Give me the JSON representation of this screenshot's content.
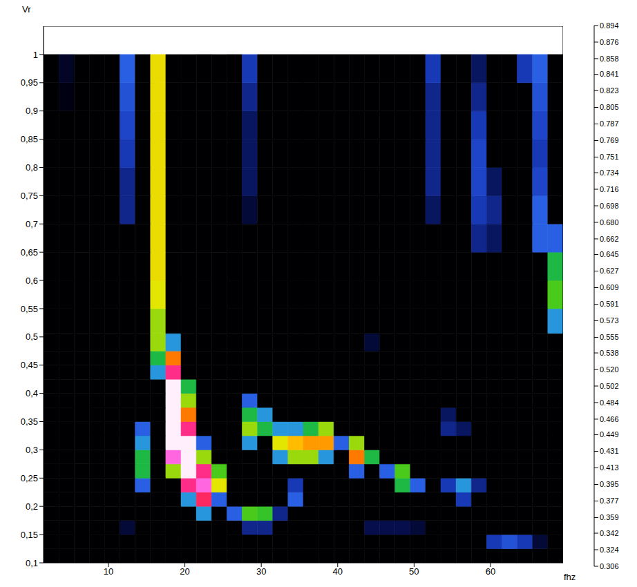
{
  "chart_data": {
    "type": "heatmap",
    "xlabel": "fhz",
    "ylabel": "Vr",
    "x": [
      2.5,
      4.5,
      6.5,
      8.5,
      10.5,
      12.5,
      14.5,
      16.5,
      18.5,
      20.5,
      22.5,
      24.5,
      26.5,
      28.5,
      30.5,
      32.5,
      34.5,
      36.5,
      38.5,
      40.5,
      42.5,
      44.5,
      46.5,
      48.5,
      50.5,
      52.5,
      54.5,
      56.5,
      58.5,
      60.5,
      62.5,
      64.5,
      66.5,
      68.5
    ],
    "y": [
      0.1125,
      0.1375,
      0.1625,
      0.1875,
      0.2125,
      0.2375,
      0.2625,
      0.2875,
      0.3125,
      0.3375,
      0.3625,
      0.3875,
      0.4125,
      0.4375,
      0.4625,
      0.4875,
      0.525,
      0.575,
      0.625,
      0.675,
      0.725,
      0.775,
      0.825,
      0.875,
      0.925,
      0.975
    ],
    "z": [
      [
        0.31,
        0.31,
        0.31,
        0.31,
        0.31,
        0.31,
        0.31,
        0.31,
        0.31,
        0.31,
        0.31,
        0.31,
        0.31,
        0.31,
        0.31,
        0.31,
        0.31,
        0.31,
        0.31,
        0.31,
        0.31,
        0.31,
        0.31,
        0.31,
        0.31,
        0.31,
        0.31,
        0.31,
        0.31,
        0.31,
        0.31,
        0.31,
        0.31,
        0.31
      ],
      [
        0.31,
        0.31,
        0.31,
        0.31,
        0.31,
        0.31,
        0.31,
        0.31,
        0.31,
        0.31,
        0.31,
        0.31,
        0.31,
        0.31,
        0.31,
        0.31,
        0.31,
        0.31,
        0.31,
        0.31,
        0.31,
        0.31,
        0.31,
        0.31,
        0.31,
        0.31,
        0.31,
        0.31,
        0.31,
        0.42,
        0.44,
        0.42,
        0.36,
        0.31
      ],
      [
        0.31,
        0.31,
        0.31,
        0.31,
        0.31,
        0.36,
        0.31,
        0.31,
        0.31,
        0.31,
        0.31,
        0.31,
        0.31,
        0.4,
        0.4,
        0.31,
        0.31,
        0.31,
        0.31,
        0.31,
        0.31,
        0.37,
        0.37,
        0.37,
        0.36,
        0.31,
        0.31,
        0.31,
        0.31,
        0.31,
        0.31,
        0.31,
        0.31,
        0.31
      ],
      [
        0.31,
        0.31,
        0.31,
        0.31,
        0.31,
        0.31,
        0.31,
        0.31,
        0.31,
        0.31,
        0.5,
        0.31,
        0.45,
        0.58,
        0.57,
        0.4,
        0.31,
        0.31,
        0.31,
        0.31,
        0.31,
        0.31,
        0.31,
        0.31,
        0.31,
        0.31,
        0.31,
        0.31,
        0.31,
        0.31,
        0.31,
        0.31,
        0.31,
        0.31
      ],
      [
        0.31,
        0.31,
        0.31,
        0.31,
        0.31,
        0.31,
        0.31,
        0.31,
        0.31,
        0.5,
        0.78,
        0.45,
        0.31,
        0.31,
        0.31,
        0.31,
        0.45,
        0.31,
        0.31,
        0.31,
        0.31,
        0.31,
        0.31,
        0.31,
        0.31,
        0.31,
        0.31,
        0.42,
        0.31,
        0.31,
        0.31,
        0.31,
        0.31,
        0.31
      ],
      [
        0.31,
        0.31,
        0.31,
        0.31,
        0.31,
        0.31,
        0.45,
        0.31,
        0.31,
        0.8,
        0.85,
        0.62,
        0.31,
        0.31,
        0.31,
        0.31,
        0.42,
        0.31,
        0.31,
        0.31,
        0.31,
        0.31,
        0.31,
        0.55,
        0.45,
        0.31,
        0.42,
        0.5,
        0.4,
        0.31,
        0.31,
        0.31,
        0.31,
        0.31
      ],
      [
        0.31,
        0.31,
        0.31,
        0.31,
        0.31,
        0.31,
        0.55,
        0.31,
        0.6,
        0.89,
        0.8,
        0.58,
        0.31,
        0.31,
        0.31,
        0.31,
        0.31,
        0.31,
        0.31,
        0.31,
        0.45,
        0.31,
        0.45,
        0.58,
        0.31,
        0.31,
        0.31,
        0.31,
        0.31,
        0.31,
        0.31,
        0.31,
        0.31,
        0.31
      ],
      [
        0.31,
        0.31,
        0.31,
        0.31,
        0.31,
        0.31,
        0.55,
        0.31,
        0.85,
        0.89,
        0.6,
        0.31,
        0.31,
        0.31,
        0.31,
        0.5,
        0.6,
        0.6,
        0.5,
        0.31,
        0.7,
        0.55,
        0.31,
        0.31,
        0.31,
        0.31,
        0.31,
        0.31,
        0.31,
        0.31,
        0.31,
        0.31,
        0.31,
        0.31
      ],
      [
        0.31,
        0.31,
        0.31,
        0.31,
        0.31,
        0.31,
        0.5,
        0.31,
        0.89,
        0.89,
        0.45,
        0.31,
        0.31,
        0.5,
        0.31,
        0.62,
        0.66,
        0.68,
        0.68,
        0.45,
        0.6,
        0.31,
        0.31,
        0.31,
        0.31,
        0.31,
        0.31,
        0.31,
        0.31,
        0.31,
        0.31,
        0.31,
        0.31,
        0.31
      ],
      [
        0.31,
        0.31,
        0.31,
        0.31,
        0.31,
        0.31,
        0.45,
        0.31,
        0.89,
        0.8,
        0.31,
        0.31,
        0.31,
        0.6,
        0.55,
        0.5,
        0.5,
        0.55,
        0.6,
        0.31,
        0.31,
        0.31,
        0.31,
        0.31,
        0.31,
        0.31,
        0.4,
        0.38,
        0.31,
        0.31,
        0.31,
        0.31,
        0.31,
        0.31
      ],
      [
        0.31,
        0.31,
        0.31,
        0.31,
        0.31,
        0.31,
        0.31,
        0.31,
        0.89,
        0.7,
        0.31,
        0.31,
        0.31,
        0.55,
        0.5,
        0.31,
        0.31,
        0.31,
        0.31,
        0.31,
        0.31,
        0.31,
        0.31,
        0.31,
        0.31,
        0.31,
        0.38,
        0.31,
        0.31,
        0.31,
        0.31,
        0.31,
        0.31,
        0.31
      ],
      [
        0.31,
        0.31,
        0.31,
        0.31,
        0.31,
        0.31,
        0.31,
        0.31,
        0.89,
        0.6,
        0.31,
        0.31,
        0.31,
        0.45,
        0.31,
        0.31,
        0.31,
        0.31,
        0.31,
        0.31,
        0.31,
        0.31,
        0.31,
        0.31,
        0.31,
        0.31,
        0.31,
        0.31,
        0.31,
        0.31,
        0.31,
        0.31,
        0.31,
        0.31
      ],
      [
        0.31,
        0.31,
        0.31,
        0.31,
        0.31,
        0.31,
        0.31,
        0.31,
        0.89,
        0.55,
        0.31,
        0.31,
        0.31,
        0.31,
        0.31,
        0.31,
        0.31,
        0.31,
        0.31,
        0.31,
        0.31,
        0.31,
        0.31,
        0.31,
        0.31,
        0.31,
        0.31,
        0.31,
        0.31,
        0.31,
        0.31,
        0.31,
        0.31,
        0.31
      ],
      [
        0.31,
        0.31,
        0.31,
        0.31,
        0.31,
        0.31,
        0.31,
        0.5,
        0.8,
        0.31,
        0.31,
        0.31,
        0.31,
        0.31,
        0.31,
        0.31,
        0.31,
        0.31,
        0.31,
        0.31,
        0.31,
        0.31,
        0.31,
        0.31,
        0.31,
        0.31,
        0.31,
        0.31,
        0.31,
        0.31,
        0.31,
        0.31,
        0.31,
        0.31
      ],
      [
        0.31,
        0.31,
        0.31,
        0.31,
        0.31,
        0.31,
        0.31,
        0.55,
        0.7,
        0.31,
        0.31,
        0.31,
        0.31,
        0.31,
        0.31,
        0.31,
        0.31,
        0.31,
        0.31,
        0.31,
        0.31,
        0.31,
        0.31,
        0.31,
        0.31,
        0.31,
        0.31,
        0.31,
        0.31,
        0.31,
        0.31,
        0.31,
        0.31,
        0.31
      ],
      [
        0.31,
        0.31,
        0.31,
        0.31,
        0.31,
        0.31,
        0.31,
        0.6,
        0.5,
        0.31,
        0.31,
        0.31,
        0.31,
        0.31,
        0.31,
        0.31,
        0.31,
        0.31,
        0.31,
        0.31,
        0.31,
        0.36,
        0.31,
        0.31,
        0.31,
        0.31,
        0.31,
        0.31,
        0.31,
        0.31,
        0.31,
        0.31,
        0.31,
        0.31
      ],
      [
        0.31,
        0.31,
        0.31,
        0.31,
        0.31,
        0.31,
        0.31,
        0.6,
        0.31,
        0.31,
        0.31,
        0.31,
        0.31,
        0.31,
        0.31,
        0.31,
        0.31,
        0.31,
        0.31,
        0.31,
        0.31,
        0.31,
        0.31,
        0.31,
        0.31,
        0.31,
        0.31,
        0.31,
        0.31,
        0.31,
        0.31,
        0.31,
        0.31,
        0.5
      ],
      [
        0.31,
        0.31,
        0.31,
        0.31,
        0.31,
        0.31,
        0.31,
        0.62,
        0.31,
        0.31,
        0.31,
        0.31,
        0.31,
        0.31,
        0.31,
        0.31,
        0.31,
        0.31,
        0.31,
        0.31,
        0.31,
        0.31,
        0.31,
        0.31,
        0.31,
        0.31,
        0.31,
        0.31,
        0.31,
        0.31,
        0.31,
        0.31,
        0.31,
        0.58
      ],
      [
        0.31,
        0.31,
        0.31,
        0.31,
        0.31,
        0.31,
        0.31,
        0.63,
        0.31,
        0.31,
        0.31,
        0.31,
        0.31,
        0.31,
        0.31,
        0.31,
        0.31,
        0.31,
        0.31,
        0.31,
        0.31,
        0.31,
        0.31,
        0.31,
        0.31,
        0.31,
        0.31,
        0.31,
        0.31,
        0.31,
        0.31,
        0.31,
        0.31,
        0.55
      ],
      [
        0.31,
        0.31,
        0.31,
        0.31,
        0.31,
        0.31,
        0.31,
        0.63,
        0.31,
        0.31,
        0.31,
        0.31,
        0.31,
        0.31,
        0.31,
        0.31,
        0.31,
        0.31,
        0.31,
        0.31,
        0.31,
        0.31,
        0.31,
        0.31,
        0.31,
        0.31,
        0.31,
        0.31,
        0.4,
        0.38,
        0.31,
        0.31,
        0.45,
        0.45
      ],
      [
        0.31,
        0.31,
        0.31,
        0.31,
        0.31,
        0.4,
        0.31,
        0.63,
        0.31,
        0.31,
        0.31,
        0.31,
        0.31,
        0.36,
        0.31,
        0.31,
        0.31,
        0.31,
        0.31,
        0.31,
        0.31,
        0.31,
        0.31,
        0.31,
        0.31,
        0.38,
        0.31,
        0.31,
        0.42,
        0.4,
        0.31,
        0.31,
        0.45,
        0.31
      ],
      [
        0.31,
        0.31,
        0.31,
        0.31,
        0.31,
        0.4,
        0.31,
        0.63,
        0.31,
        0.31,
        0.31,
        0.31,
        0.31,
        0.38,
        0.31,
        0.31,
        0.31,
        0.31,
        0.31,
        0.31,
        0.31,
        0.31,
        0.31,
        0.31,
        0.31,
        0.4,
        0.31,
        0.31,
        0.43,
        0.38,
        0.31,
        0.31,
        0.43,
        0.31
      ],
      [
        0.31,
        0.31,
        0.31,
        0.31,
        0.31,
        0.42,
        0.31,
        0.63,
        0.31,
        0.31,
        0.31,
        0.31,
        0.31,
        0.38,
        0.31,
        0.31,
        0.31,
        0.31,
        0.31,
        0.31,
        0.31,
        0.31,
        0.31,
        0.31,
        0.31,
        0.4,
        0.31,
        0.31,
        0.43,
        0.31,
        0.31,
        0.31,
        0.42,
        0.31
      ],
      [
        0.31,
        0.31,
        0.31,
        0.31,
        0.31,
        0.43,
        0.31,
        0.63,
        0.31,
        0.31,
        0.31,
        0.31,
        0.31,
        0.38,
        0.31,
        0.31,
        0.31,
        0.31,
        0.31,
        0.31,
        0.31,
        0.31,
        0.31,
        0.31,
        0.31,
        0.4,
        0.31,
        0.31,
        0.42,
        0.31,
        0.31,
        0.31,
        0.43,
        0.31
      ],
      [
        0.31,
        0.34,
        0.31,
        0.31,
        0.31,
        0.44,
        0.31,
        0.63,
        0.31,
        0.31,
        0.31,
        0.31,
        0.31,
        0.4,
        0.31,
        0.31,
        0.31,
        0.31,
        0.31,
        0.31,
        0.31,
        0.31,
        0.31,
        0.31,
        0.31,
        0.4,
        0.31,
        0.31,
        0.4,
        0.31,
        0.31,
        0.31,
        0.44,
        0.31
      ],
      [
        0.31,
        0.35,
        0.31,
        0.31,
        0.31,
        0.45,
        0.31,
        0.63,
        0.31,
        0.31,
        0.31,
        0.31,
        0.31,
        0.42,
        0.31,
        0.31,
        0.31,
        0.31,
        0.31,
        0.31,
        0.31,
        0.31,
        0.31,
        0.31,
        0.31,
        0.42,
        0.31,
        0.31,
        0.38,
        0.31,
        0.31,
        0.42,
        0.45,
        0.31
      ]
    ],
    "xlim": [
      1.5,
      69.5
    ],
    "ylim": [
      0.1,
      1.05
    ],
    "xticks": [
      10,
      20,
      30,
      40,
      50,
      60
    ],
    "yticks": [
      {
        "value": 0.1,
        "label": "0,1"
      },
      {
        "value": 0.15,
        "label": "0,15"
      },
      {
        "value": 0.2,
        "label": "0,2"
      },
      {
        "value": 0.25,
        "label": "0,25"
      },
      {
        "value": 0.3,
        "label": "0,3"
      },
      {
        "value": 0.35,
        "label": "0,35"
      },
      {
        "value": 0.4,
        "label": "0,4"
      },
      {
        "value": 0.45,
        "label": "0,45"
      },
      {
        "value": 0.5,
        "label": "0,5"
      },
      {
        "value": 0.55,
        "label": "0,55"
      },
      {
        "value": 0.6,
        "label": "0,6"
      },
      {
        "value": 0.65,
        "label": "0,65"
      },
      {
        "value": 0.7,
        "label": "0,7"
      },
      {
        "value": 0.75,
        "label": "0,75"
      },
      {
        "value": 0.8,
        "label": "0,8"
      },
      {
        "value": 0.85,
        "label": "0,85"
      },
      {
        "value": 0.9,
        "label": "0,9"
      },
      {
        "value": 0.95,
        "label": "0,95"
      },
      1
    ],
    "colorbar_range": [
      0.306,
      0.894
    ],
    "colorbar_ticks": [
      0.306,
      0.324,
      0.342,
      0.359,
      0.377,
      0.395,
      0.413,
      0.431,
      0.449,
      0.466,
      0.484,
      0.502,
      {
        "value": 0.52,
        "label": "0.520"
      },
      0.538,
      0.555,
      0.573,
      0.591,
      0.609,
      0.627,
      0.645,
      0.662,
      {
        "value": 0.68,
        "label": "0.680"
      },
      0.698,
      0.716,
      0.734,
      0.751,
      0.769,
      0.787,
      0.805,
      0.823,
      0.841,
      0.858,
      0.876,
      0.894
    ],
    "grid": false
  }
}
